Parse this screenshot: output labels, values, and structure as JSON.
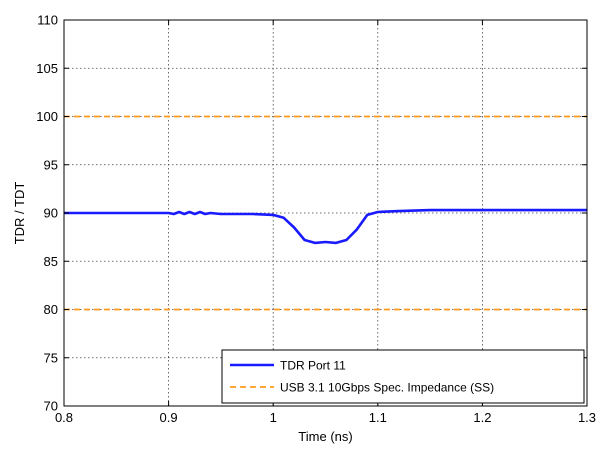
{
  "chart_data": {
    "type": "line",
    "title": "",
    "xlabel": "Time (ns)",
    "ylabel": "TDR / TDT",
    "xlim": [
      0.8,
      1.3
    ],
    "ylim": [
      70,
      110
    ],
    "x_ticks": [
      0.8,
      0.9,
      1,
      1.1,
      1.2,
      1.3
    ],
    "x_tick_labels": [
      "0.8",
      "0.9",
      "1",
      "1.1",
      "1.2",
      "1.3"
    ],
    "y_ticks": [
      70,
      75,
      80,
      85,
      90,
      95,
      100,
      105,
      110
    ],
    "y_tick_labels": [
      "70",
      "75",
      "80",
      "85",
      "90",
      "95",
      "100",
      "105",
      "110"
    ],
    "grid": true,
    "legend_position": "bottom-right",
    "series": [
      {
        "name": "TDR Port 11",
        "color": "#1a1aff",
        "style": "solid",
        "x": [
          0.8,
          0.85,
          0.9,
          0.905,
          0.91,
          0.915,
          0.92,
          0.925,
          0.93,
          0.935,
          0.94,
          0.95,
          0.98,
          1.0,
          1.01,
          1.02,
          1.03,
          1.04,
          1.05,
          1.06,
          1.07,
          1.08,
          1.09,
          1.1,
          1.12,
          1.15,
          1.2,
          1.25,
          1.3
        ],
        "y": [
          90.0,
          90.0,
          90.0,
          89.9,
          90.1,
          89.9,
          90.1,
          89.9,
          90.1,
          89.9,
          90.0,
          89.9,
          89.9,
          89.8,
          89.5,
          88.5,
          87.2,
          86.9,
          87.0,
          86.9,
          87.2,
          88.3,
          89.8,
          90.1,
          90.2,
          90.3,
          90.3,
          90.3,
          90.3
        ]
      },
      {
        "name": "USB 3.1 10Gbps Spec. Impedance (SS)",
        "color": "#ff9a1f",
        "style": "dashed",
        "x": [
          0.8,
          1.3
        ],
        "y": [
          100,
          100
        ]
      },
      {
        "name": "",
        "color": "#ff9a1f",
        "style": "dashed",
        "x": [
          0.8,
          1.3
        ],
        "y": [
          80,
          80
        ]
      }
    ]
  }
}
